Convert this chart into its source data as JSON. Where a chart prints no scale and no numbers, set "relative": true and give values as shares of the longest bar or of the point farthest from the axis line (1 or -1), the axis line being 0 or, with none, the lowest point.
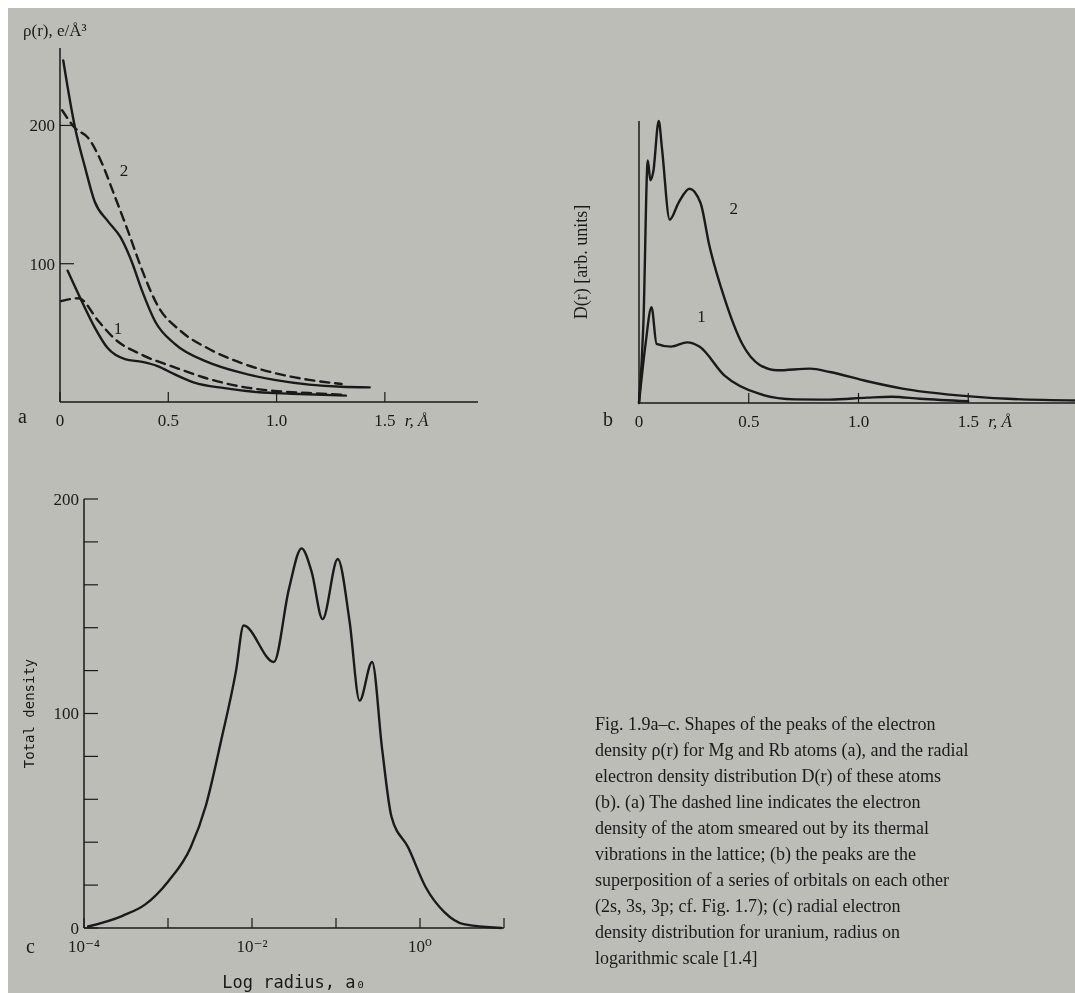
{
  "chart_data": [
    {
      "type": "line",
      "ylabel": "ρ(r), e/Å³",
      "xlabel": "r, Å",
      "xlim": [
        0,
        1.93
      ],
      "ylim": [
        0,
        256
      ],
      "xticks": [
        0,
        0.5,
        {
          "value": 1,
          "label": "1.0"
        },
        1.5
      ],
      "yticks": [
        100,
        200
      ],
      "annotations": [
        "a"
      ],
      "series": [
        {
          "name": "2",
          "color": "#1a1a1a",
          "line_style": "solid",
          "x": [
            0.015,
            0.07,
            0.115,
            0.16,
            0.22,
            0.28,
            0.33,
            0.38,
            0.44,
            0.53,
            0.68,
            0.84,
            0.99,
            1.15,
            1.3,
            1.43
          ],
          "values": [
            247,
            198,
            170,
            145,
            131,
            119,
            102,
            80,
            58,
            42,
            29,
            21,
            16,
            12.6,
            11,
            10.6
          ]
        },
        {
          "color": "#1a1a1a",
          "line_style": "dashed",
          "x": [
            0.01,
            0.07,
            0.13,
            0.19,
            0.25,
            0.32,
            0.38,
            0.45,
            0.56,
            0.68,
            0.84,
            0.99,
            1.15,
            1.3
          ],
          "values": [
            211,
            198,
            191,
            174,
            150,
            121,
            95,
            70,
            51,
            39,
            28,
            21,
            16,
            13
          ]
        },
        {
          "name": "1",
          "color": "#1a1a1a",
          "line_style": "solid",
          "x": [
            0.035,
            0.1,
            0.16,
            0.22,
            0.3,
            0.38,
            0.45,
            0.53,
            0.62,
            0.76,
            0.92,
            1.07,
            1.32
          ],
          "values": [
            95,
            73,
            54,
            39,
            31,
            29,
            26,
            20,
            14,
            10,
            7,
            6,
            4.6
          ]
        },
        {
          "color": "#1a1a1a",
          "line_style": "dashed",
          "x": [
            0.005,
            0.085,
            0.18,
            0.25,
            0.38,
            0.53,
            0.68,
            0.84,
            0.99,
            1.15,
            1.3
          ],
          "values": [
            73,
            75,
            58,
            46,
            34,
            25,
            17,
            11,
            8,
            6.5,
            5.3
          ]
        }
      ]
    },
    {
      "type": "line",
      "relative": true,
      "ylabel": "D(r) [arb. units]",
      "xlabel": "r, Å",
      "xlim": [
        0,
        2.0
      ],
      "xticks": [
        0,
        0.5,
        {
          "value": 1,
          "label": "1.0"
        },
        1.5
      ],
      "annotations": [
        "b"
      ],
      "series": [
        {
          "name": "2",
          "color": "#1a1a1a",
          "line_style": "solid",
          "x": [
            0,
            0.02,
            0.04,
            0.052,
            0.065,
            0.09,
            0.105,
            0.14,
            0.18,
            0.23,
            0.28,
            0.32,
            0.39,
            0.47,
            0.55,
            0.63,
            0.78,
            0.87,
            1.04,
            1.2,
            1.44,
            1.68,
            2.0
          ],
          "values": [
            0,
            0.28,
            0.86,
            0.79,
            0.82,
            1.0,
            0.9,
            0.65,
            0.71,
            0.76,
            0.71,
            0.56,
            0.37,
            0.21,
            0.135,
            0.116,
            0.122,
            0.11,
            0.077,
            0.051,
            0.028,
            0.015,
            0.009
          ]
        },
        {
          "name": "1",
          "color": "#1a1a1a",
          "line_style": "solid",
          "x": [
            0,
            0.03,
            0.057,
            0.08,
            0.146,
            0.22,
            0.275,
            0.39,
            0.55,
            0.71,
            0.87,
            1.04,
            1.15,
            1.28,
            1.5
          ],
          "values": [
            0,
            0.21,
            0.34,
            0.21,
            0.2,
            0.215,
            0.2,
            0.097,
            0.032,
            0.013,
            0.012,
            0.019,
            0.022,
            0.015,
            0.006
          ]
        }
      ]
    },
    {
      "type": "line",
      "log": "x",
      "ylabel": "Total density",
      "xlabel": "Log radius, a₀",
      "xlim": [
        0.0001,
        10
      ],
      "ylim": [
        0,
        200
      ],
      "xticks": [
        {
          "value": 0.0001,
          "label": "10⁻⁴"
        },
        {
          "value": 0.001,
          "label": null
        },
        {
          "value": 0.01,
          "label": "10⁻²"
        },
        {
          "value": 0.1,
          "label": null
        },
        {
          "value": 1,
          "label": "10⁰"
        },
        {
          "value": 10,
          "label": null
        }
      ],
      "yticks": [
        0,
        {
          "value": 20,
          "label": null
        },
        {
          "value": 40,
          "label": null
        },
        {
          "value": 60,
          "label": null
        },
        {
          "value": 80,
          "label": null
        },
        100,
        {
          "value": 120,
          "label": null
        },
        {
          "value": 140,
          "label": null
        },
        {
          "value": 160,
          "label": null
        },
        {
          "value": 180,
          "label": null
        },
        200
      ],
      "annotations": [
        "c",
        "Fig. 1.9a–c. Shapes of the peaks of the electron density ρ(r) for Mg and Rb atoms (a), and the radial electron density distribution D(r) of these atoms (b). (a) The dashed line indicates the electron density of the atom smeared out by its thermal vibrations in the lattice; (b) the peaks are the superposition of a series of orbitals on each other (2s, 3s, 3p; cf. Fig. 1.7); (c) radial electron density distribution for uranium, radius on logarithmic scale [1.4]"
      ],
      "series": [
        {
          "color": "#1a1a1a",
          "line_style": "solid",
          "x": [
            0.000112,
            0.000288,
            0.000537,
            0.001,
            0.00186,
            0.00282,
            0.00427,
            0.00646,
            0.00794,
            0.0182,
            0.0275,
            0.0389,
            0.0513,
            0.0692,
            0.105,
            0.145,
            0.191,
            0.269,
            0.355,
            0.457,
            0.724,
            1.17,
            1.95,
            3.31,
            9.3
          ],
          "values": [
            0.7,
            5.7,
            11,
            21.6,
            37.5,
            57,
            87,
            120,
            141,
            124,
            158,
            177,
            166,
            144,
            172,
            143,
            106,
            124,
            83,
            52,
            37.5,
            19,
            7.4,
            1.8,
            0
          ]
        }
      ]
    }
  ]
}
